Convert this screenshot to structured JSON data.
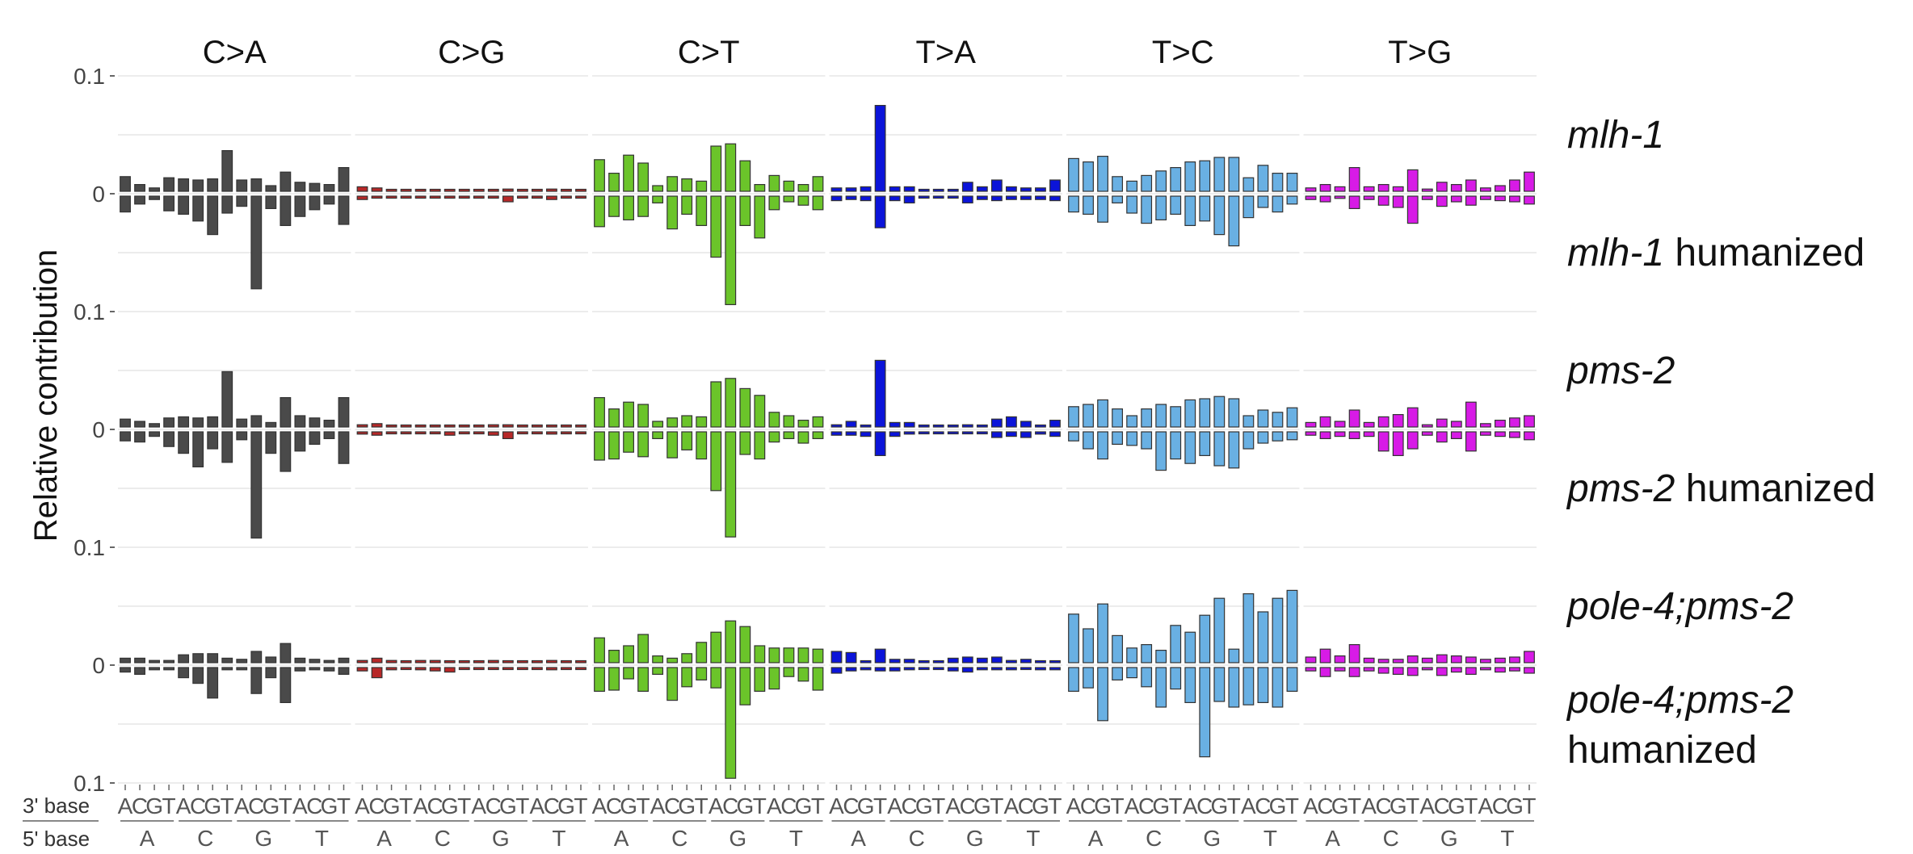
{
  "chart_data": {
    "type": "bar",
    "ylabel": "Relative contribution",
    "y_tick_labels": [
      "0.1",
      "0",
      "0.1",
      "0",
      "0.1",
      "0",
      "0.1"
    ],
    "ylim_up": [
      0,
      0.1
    ],
    "ylim_down": [
      0,
      0.1
    ],
    "grid": true,
    "mutation_types": [
      "C>A",
      "C>G",
      "C>T",
      "T>A",
      "T>C",
      "T>G"
    ],
    "colors": [
      "#4a4a4a",
      "#b72828",
      "#6bc42a",
      "#0b14d9",
      "#69b0e3",
      "#d71be6"
    ],
    "x_labels": {
      "three_prime_label": "3' base",
      "five_prime_label": "5' base",
      "three_prime_bases": [
        "A",
        "C",
        "G",
        "T"
      ],
      "five_prime_bases": [
        "A",
        "C",
        "G",
        "T"
      ]
    },
    "panels": [
      {
        "label_up": [
          {
            "text": "mlh-1",
            "italic": true
          }
        ],
        "label_down": [
          {
            "text": "mlh-1",
            "italic": true
          },
          {
            "text": " humanized",
            "italic": false
          }
        ],
        "up": [
          [
            0.013,
            0.006,
            0.003,
            0.012,
            0.011,
            0.01,
            0.011,
            0.036,
            0.01,
            0.011,
            0.005,
            0.017,
            0.008,
            0.007,
            0.006,
            0.021
          ],
          [
            0.004,
            0.003,
            0.001,
            0.001,
            0.001,
            0.001,
            0.001,
            0.001,
            0.001,
            0.001,
            0.002,
            0.001,
            0.001,
            0.002,
            0.001,
            0.001
          ],
          [
            0.028,
            0.016,
            0.032,
            0.025,
            0.005,
            0.013,
            0.011,
            0.009,
            0.04,
            0.042,
            0.027,
            0.006,
            0.014,
            0.009,
            0.006,
            0.013
          ],
          [
            0.003,
            0.003,
            0.004,
            0.076,
            0.004,
            0.004,
            0.001,
            0.001,
            0.001,
            0.008,
            0.004,
            0.01,
            0.004,
            0.003,
            0.003,
            0.01
          ],
          [
            0.029,
            0.026,
            0.031,
            0.013,
            0.009,
            0.014,
            0.018,
            0.021,
            0.026,
            0.027,
            0.03,
            0.03,
            0.012,
            0.023,
            0.016,
            0.016
          ],
          [
            0.003,
            0.006,
            0.004,
            0.021,
            0.004,
            0.006,
            0.004,
            0.019,
            0.002,
            0.008,
            0.006,
            0.01,
            0.003,
            0.005,
            0.01,
            0.017
          ]
        ],
        "down": [
          [
            0.014,
            0.007,
            0.003,
            0.013,
            0.016,
            0.022,
            0.034,
            0.015,
            0.009,
            0.082,
            0.011,
            0.026,
            0.018,
            0.012,
            0.007,
            0.025
          ],
          [
            0.003,
            0.001,
            0.001,
            0.001,
            0.001,
            0.001,
            0.001,
            0.001,
            0.001,
            0.001,
            0.005,
            0.001,
            0.001,
            0.003,
            0.001,
            0.001
          ],
          [
            0.027,
            0.018,
            0.021,
            0.018,
            0.006,
            0.029,
            0.016,
            0.026,
            0.054,
            0.096,
            0.026,
            0.037,
            0.012,
            0.005,
            0.008,
            0.012
          ],
          [
            0.004,
            0.003,
            0.004,
            0.028,
            0.004,
            0.006,
            0.001,
            0.001,
            0.001,
            0.006,
            0.003,
            0.004,
            0.003,
            0.003,
            0.003,
            0.004
          ],
          [
            0.014,
            0.016,
            0.023,
            0.006,
            0.015,
            0.024,
            0.021,
            0.016,
            0.026,
            0.022,
            0.034,
            0.044,
            0.019,
            0.01,
            0.014,
            0.007
          ],
          [
            0.003,
            0.005,
            0.002,
            0.011,
            0.003,
            0.008,
            0.01,
            0.024,
            0.003,
            0.009,
            0.005,
            0.008,
            0.003,
            0.004,
            0.005,
            0.007
          ]
        ]
      },
      {
        "label_up": [
          {
            "text": "pms-2",
            "italic": true
          }
        ],
        "label_down": [
          {
            "text": "pms-2",
            "italic": true
          },
          {
            "text": " humanized",
            "italic": false
          }
        ],
        "up": [
          [
            0.007,
            0.005,
            0.003,
            0.008,
            0.009,
            0.008,
            0.009,
            0.049,
            0.007,
            0.01,
            0.004,
            0.026,
            0.01,
            0.008,
            0.006,
            0.026
          ],
          [
            0.002,
            0.003,
            0.001,
            0.001,
            0.001,
            0.001,
            0.001,
            0.001,
            0.001,
            0.002,
            0.002,
            0.001,
            0.001,
            0.001,
            0.001,
            0.001
          ],
          [
            0.026,
            0.016,
            0.022,
            0.02,
            0.005,
            0.008,
            0.01,
            0.009,
            0.04,
            0.043,
            0.034,
            0.028,
            0.013,
            0.01,
            0.006,
            0.009
          ],
          [
            0.002,
            0.005,
            0.001,
            0.059,
            0.004,
            0.004,
            0.001,
            0.001,
            0.001,
            0.002,
            0.001,
            0.007,
            0.009,
            0.005,
            0.001,
            0.006
          ],
          [
            0.018,
            0.02,
            0.024,
            0.016,
            0.01,
            0.016,
            0.02,
            0.018,
            0.024,
            0.025,
            0.027,
            0.025,
            0.01,
            0.015,
            0.013,
            0.017
          ],
          [
            0.004,
            0.009,
            0.005,
            0.015,
            0.004,
            0.009,
            0.011,
            0.017,
            0.002,
            0.007,
            0.005,
            0.022,
            0.003,
            0.006,
            0.008,
            0.01
          ]
        ],
        "down": [
          [
            0.008,
            0.009,
            0.004,
            0.013,
            0.019,
            0.031,
            0.015,
            0.027,
            0.007,
            0.094,
            0.019,
            0.035,
            0.017,
            0.011,
            0.006,
            0.028
          ],
          [
            0.002,
            0.003,
            0.001,
            0.001,
            0.001,
            0.001,
            0.003,
            0.001,
            0.001,
            0.003,
            0.006,
            0.001,
            0.001,
            0.002,
            0.001,
            0.001
          ],
          [
            0.025,
            0.024,
            0.018,
            0.022,
            0.006,
            0.023,
            0.016,
            0.024,
            0.052,
            0.093,
            0.02,
            0.024,
            0.009,
            0.006,
            0.01,
            0.006
          ],
          [
            0.003,
            0.003,
            0.004,
            0.021,
            0.004,
            0.002,
            0.001,
            0.001,
            0.001,
            0.001,
            0.001,
            0.005,
            0.004,
            0.005,
            0.002,
            0.004
          ],
          [
            0.008,
            0.015,
            0.024,
            0.011,
            0.012,
            0.015,
            0.034,
            0.024,
            0.028,
            0.021,
            0.03,
            0.032,
            0.015,
            0.01,
            0.008,
            0.007
          ],
          [
            0.003,
            0.006,
            0.004,
            0.006,
            0.004,
            0.017,
            0.021,
            0.015,
            0.003,
            0.009,
            0.006,
            0.017,
            0.003,
            0.004,
            0.005,
            0.007
          ]
        ]
      },
      {
        "label_up": [
          {
            "text": "pole-4;pms-2",
            "italic": true
          }
        ],
        "label_down": [
          {
            "text": "pole-4;pms-2",
            "italic": true
          }
        ],
        "label_down_line2": "humanized",
        "up": [
          [
            0.004,
            0.004,
            0.002,
            0.002,
            0.007,
            0.008,
            0.008,
            0.004,
            0.003,
            0.01,
            0.005,
            0.017,
            0.004,
            0.003,
            0.002,
            0.004
          ],
          [
            0.002,
            0.004,
            0.002,
            0.001,
            0.002,
            0.002,
            0.001,
            0.001,
            0.001,
            0.002,
            0.001,
            0.001,
            0.001,
            0.002,
            0.001,
            0.001
          ],
          [
            0.022,
            0.011,
            0.015,
            0.025,
            0.006,
            0.004,
            0.008,
            0.018,
            0.027,
            0.037,
            0.032,
            0.015,
            0.013,
            0.013,
            0.013,
            0.012
          ],
          [
            0.01,
            0.009,
            0.001,
            0.012,
            0.003,
            0.003,
            0.001,
            0.001,
            0.004,
            0.005,
            0.004,
            0.005,
            0.002,
            0.003,
            0.001,
            0.001
          ],
          [
            0.043,
            0.03,
            0.052,
            0.024,
            0.013,
            0.016,
            0.011,
            0.033,
            0.027,
            0.042,
            0.057,
            0.012,
            0.061,
            0.045,
            0.057,
            0.064
          ],
          [
            0.005,
            0.012,
            0.006,
            0.016,
            0.004,
            0.003,
            0.003,
            0.006,
            0.004,
            0.007,
            0.006,
            0.005,
            0.003,
            0.004,
            0.005,
            0.01
          ]
        ],
        "down": [
          [
            0.004,
            0.006,
            0.002,
            0.002,
            0.009,
            0.014,
            0.027,
            0.002,
            0.002,
            0.023,
            0.009,
            0.031,
            0.003,
            0.002,
            0.003,
            0.006
          ],
          [
            0.003,
            0.009,
            0.002,
            0.001,
            0.002,
            0.003,
            0.004,
            0.001,
            0.001,
            0.001,
            0.001,
            0.001,
            0.001,
            0.002,
            0.001,
            0.001
          ],
          [
            0.021,
            0.02,
            0.01,
            0.021,
            0.006,
            0.029,
            0.017,
            0.011,
            0.018,
            0.098,
            0.033,
            0.021,
            0.019,
            0.008,
            0.012,
            0.02
          ],
          [
            0.005,
            0.003,
            0.002,
            0.003,
            0.003,
            0.002,
            0.001,
            0.001,
            0.003,
            0.004,
            0.002,
            0.002,
            0.002,
            0.001,
            0.002,
            0.002
          ],
          [
            0.021,
            0.018,
            0.047,
            0.011,
            0.009,
            0.017,
            0.035,
            0.019,
            0.031,
            0.079,
            0.03,
            0.035,
            0.033,
            0.031,
            0.035,
            0.021
          ],
          [
            0.003,
            0.008,
            0.003,
            0.008,
            0.003,
            0.005,
            0.006,
            0.007,
            0.002,
            0.007,
            0.004,
            0.006,
            0.002,
            0.004,
            0.003,
            0.005
          ]
        ]
      }
    ]
  }
}
